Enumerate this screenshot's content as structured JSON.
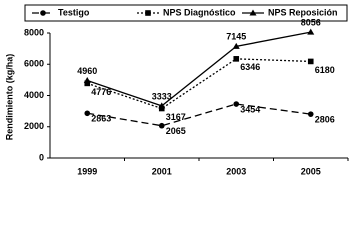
{
  "chart_data": {
    "type": "line",
    "y_label": "Rendimiento (kg/ha)",
    "categories": [
      "1999",
      "2001",
      "2003",
      "2005"
    ],
    "series": [
      {
        "name": "Testigo",
        "color": "#000000",
        "marker": "circle",
        "dash": "7,4",
        "values": [
          2863,
          2065,
          3454,
          2806
        ]
      },
      {
        "name": "NPS Diagnóstico",
        "color": "#000000",
        "marker": "square",
        "dash": "2,2",
        "values": [
          4776,
          3167,
          6346,
          6180
        ]
      },
      {
        "name": "NPS Reposición",
        "color": "#000000",
        "marker": "triangle",
        "dash": "none",
        "values": [
          4960,
          3333,
          7145,
          8056
        ]
      }
    ],
    "ylim": [
      0,
      8000
    ],
    "yticks": [
      0,
      2000,
      4000,
      6000,
      8000
    ],
    "grid": false,
    "legend": "top"
  }
}
